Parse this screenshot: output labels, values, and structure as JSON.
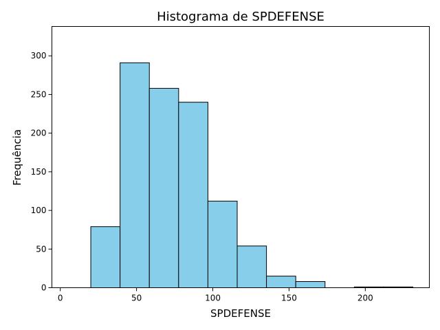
{
  "chart_data": {
    "type": "bar",
    "title": "Histograma de SPDEFENSE",
    "xlabel": "SPDEFENSE",
    "ylabel": "Frequência",
    "bins": [
      {
        "start": 20.0,
        "end": 39.2,
        "count": 79
      },
      {
        "start": 39.2,
        "end": 58.4,
        "count": 291
      },
      {
        "start": 58.4,
        "end": 77.6,
        "count": 258
      },
      {
        "start": 77.6,
        "end": 96.8,
        "count": 240
      },
      {
        "start": 96.8,
        "end": 116.0,
        "count": 112
      },
      {
        "start": 116.0,
        "end": 135.2,
        "count": 54
      },
      {
        "start": 135.2,
        "end": 154.4,
        "count": 15
      },
      {
        "start": 154.4,
        "end": 173.6,
        "count": 8
      },
      {
        "start": 173.6,
        "end": 192.8,
        "count": 0
      },
      {
        "start": 192.8,
        "end": 212.0,
        "count": 1
      },
      {
        "start": 212.0,
        "end": 231.2,
        "count": 1
      }
    ],
    "xlim": [
      -5.5,
      242
    ],
    "ylim": [
      0,
      338
    ],
    "xticks": [
      "0",
      "50",
      "100",
      "150",
      "200"
    ],
    "yticks": [
      "0",
      "50",
      "100",
      "150",
      "200",
      "250",
      "300"
    ],
    "bar_color": "#87ceeb",
    "edge_color": "#000000",
    "grid": false
  }
}
